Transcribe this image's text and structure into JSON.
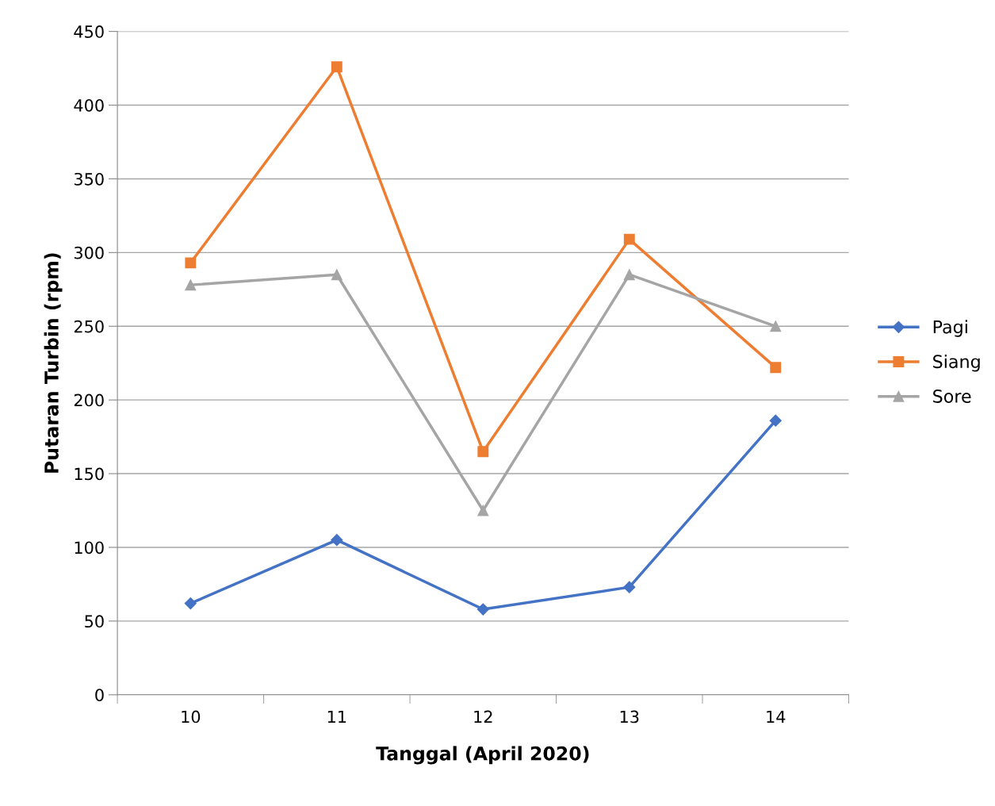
{
  "chart_data": {
    "type": "line",
    "xlabel": "Tanggal (April 2020)",
    "ylabel": "Putaran Turbin (rpm)",
    "categories": [
      "10",
      "11",
      "12",
      "13",
      "14"
    ],
    "series": [
      {
        "name": "Pagi",
        "color": "#4472c4",
        "marker": "diamond",
        "values": [
          62,
          105,
          58,
          73,
          186
        ]
      },
      {
        "name": "Siang",
        "color": "#ed7d31",
        "marker": "square",
        "values": [
          293,
          426,
          165,
          309,
          222
        ]
      },
      {
        "name": "Sore",
        "color": "#a5a5a5",
        "marker": "triangle",
        "values": [
          278,
          285,
          125,
          285,
          250
        ]
      }
    ],
    "ylim": [
      0,
      450
    ],
    "yticks": [
      0,
      50,
      100,
      150,
      200,
      250,
      300,
      350,
      400,
      450
    ],
    "grid": "y",
    "legend": "right",
    "line_style": "solid"
  }
}
